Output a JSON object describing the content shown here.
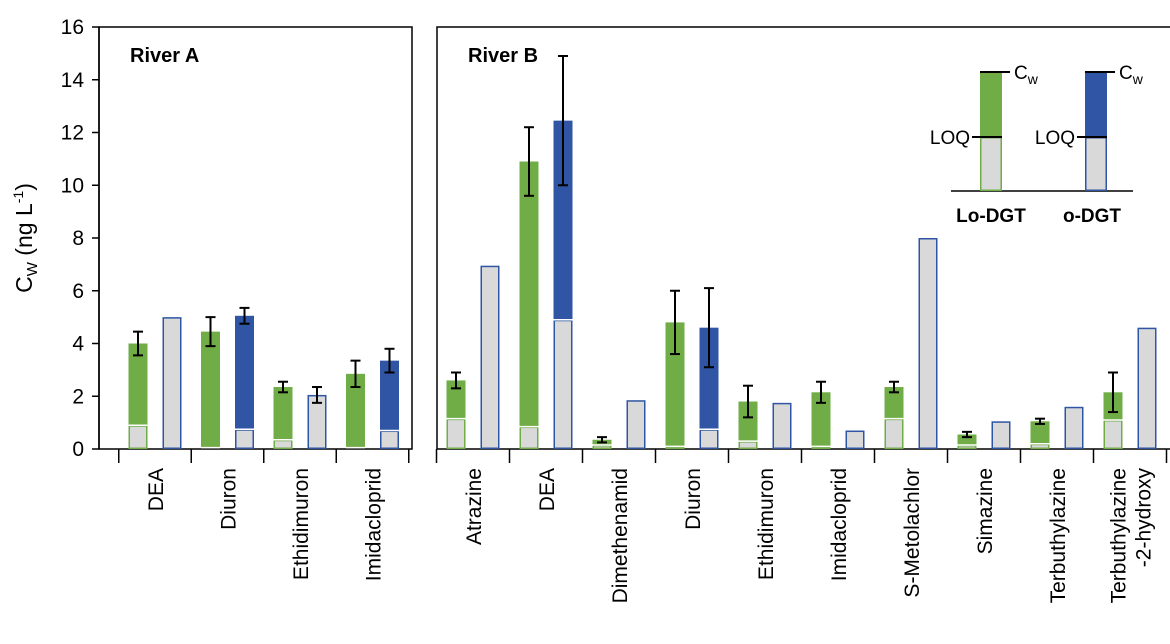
{
  "chart_data": {
    "type": "bar",
    "ylabel": "C_W (ng L^-1)",
    "ylim": [
      0,
      16
    ],
    "yticks": [
      "0",
      "2",
      "4",
      "6",
      "8",
      "10",
      "12",
      "14",
      "16"
    ],
    "colors": {
      "lo_dgt": "#70ad47",
      "o_dgt": "#2f55a4",
      "loq": "#d9d9d9",
      "error_bar": "#000000"
    },
    "legend": {
      "cw_label": "C",
      "cw_sub": "w",
      "loq_label": "LOQ",
      "lo_dgt_label": "Lo-DGT",
      "o_dgt_label": "o-DGT",
      "placement": "top-right of River B panel"
    },
    "panels": [
      {
        "title": "River A",
        "groups": [
          {
            "label": "DEA",
            "lo": {
              "cw": 4.0,
              "loq": 0.9,
              "err": 0.45
            },
            "o": {
              "cw": 5.0,
              "loq": 5.0,
              "err": null
            }
          },
          {
            "label": "Diuron",
            "lo": {
              "cw": 4.45,
              "loq": 0.05,
              "err": 0.55
            },
            "o": {
              "cw": 5.05,
              "loq": 0.75,
              "err": 0.3
            }
          },
          {
            "label": "Ethidimuron",
            "lo": {
              "cw": 2.35,
              "loq": 0.35,
              "err": 0.2
            },
            "o": {
              "cw": 2.05,
              "loq": 2.05,
              "err": 0.3
            }
          },
          {
            "label": "Imidacloprid",
            "lo": {
              "cw": 2.85,
              "loq": 0.05,
              "err": 0.5
            },
            "o": {
              "cw": 3.35,
              "loq": 0.7,
              "err": 0.45
            }
          }
        ]
      },
      {
        "title": "River B",
        "groups": [
          {
            "label": "Atrazine",
            "lo": {
              "cw": 2.6,
              "loq": 1.15,
              "err": 0.3
            },
            "o": {
              "cw": 6.95,
              "loq": 6.95,
              "err": null
            }
          },
          {
            "label": "DEA",
            "lo": {
              "cw": 10.9,
              "loq": 0.85,
              "err": 1.3
            },
            "o": {
              "cw": 12.45,
              "loq": 4.9,
              "err": 2.45
            }
          },
          {
            "label": "Dimethenamid",
            "lo": {
              "cw": 0.35,
              "loq": 0.15,
              "err": 0.1
            },
            "o": {
              "cw": 1.85,
              "loq": 1.85,
              "err": null
            }
          },
          {
            "label": "Diuron",
            "lo": {
              "cw": 4.8,
              "loq": 0.1,
              "err": 1.2
            },
            "o": {
              "cw": 4.6,
              "loq": 0.75,
              "err": 1.5
            }
          },
          {
            "label": "Ethidimuron",
            "lo": {
              "cw": 1.8,
              "loq": 0.3,
              "err": 0.6
            },
            "o": {
              "cw": 1.75,
              "loq": 1.75,
              "err": null
            }
          },
          {
            "label": "Imidacloprid",
            "lo": {
              "cw": 2.15,
              "loq": 0.1,
              "err": 0.4
            },
            "o": {
              "cw": 0.7,
              "loq": 0.7,
              "err": null
            }
          },
          {
            "label": "S-Metolachlor",
            "lo": {
              "cw": 2.35,
              "loq": 1.15,
              "err": 0.2
            },
            "o": {
              "cw": 8.0,
              "loq": 8.0,
              "err": null
            }
          },
          {
            "label": "Simazine",
            "lo": {
              "cw": 0.55,
              "loq": 0.15,
              "err": 0.1
            },
            "o": {
              "cw": 1.05,
              "loq": 1.05,
              "err": null
            }
          },
          {
            "label": "Terbuthylazine",
            "lo": {
              "cw": 1.05,
              "loq": 0.2,
              "err": 0.1
            },
            "o": {
              "cw": 1.6,
              "loq": 1.6,
              "err": null
            }
          },
          {
            "label": "Terbuthylazine\n-2-hydroxy",
            "lo": {
              "cw": 2.15,
              "loq": 1.1,
              "err": 0.75
            },
            "o": {
              "cw": 4.6,
              "loq": 4.6,
              "err": null
            }
          }
        ]
      }
    ]
  }
}
